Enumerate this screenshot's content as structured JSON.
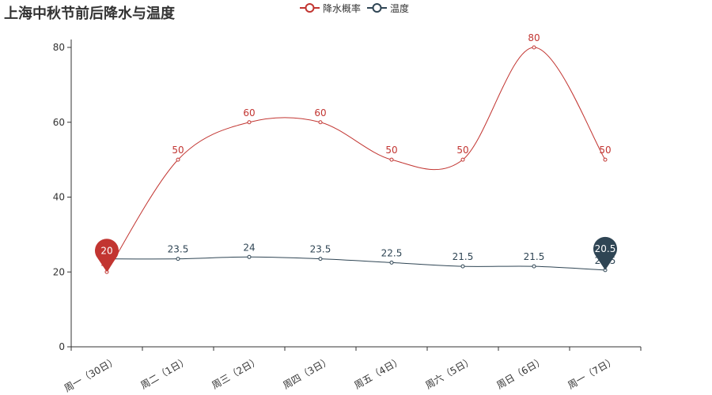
{
  "title": "上海中秋节前后降水与温度",
  "legend": [
    {
      "name": "降水概率",
      "color": "#c23531"
    },
    {
      "name": "温度",
      "color": "#2f4554"
    }
  ],
  "chart_data": {
    "type": "line",
    "title": "上海中秋节前后降水与温度",
    "categories": [
      "周一（30日）",
      "周二（1日）",
      "周三（2日）",
      "周四（3日）",
      "周五（4日）",
      "周六（5日）",
      "周日（6日）",
      "周一（7日）"
    ],
    "ylim": [
      0,
      80
    ],
    "yticks": [
      0,
      20,
      40,
      60,
      80
    ],
    "smooth": true,
    "legend_position": "top-center",
    "grid": false,
    "series": [
      {
        "name": "降水概率",
        "color": "#c23531",
        "values": [
          20,
          50,
          60,
          60,
          50,
          50,
          80,
          50
        ],
        "mark_points": []
      },
      {
        "name": "温度",
        "color": "#2f4554",
        "values": [
          23.5,
          23.5,
          24,
          23.5,
          22.5,
          21.5,
          21.5,
          20.5
        ],
        "mark_points": []
      }
    ],
    "mark_points": [
      {
        "series": "降水概率",
        "label": "20",
        "category": "周一（30日）",
        "value": 20,
        "color": "#c23531"
      },
      {
        "series": "温度",
        "label": "20.5",
        "category": "周一（7日）",
        "value": 20.5,
        "color": "#2f4554"
      }
    ]
  }
}
